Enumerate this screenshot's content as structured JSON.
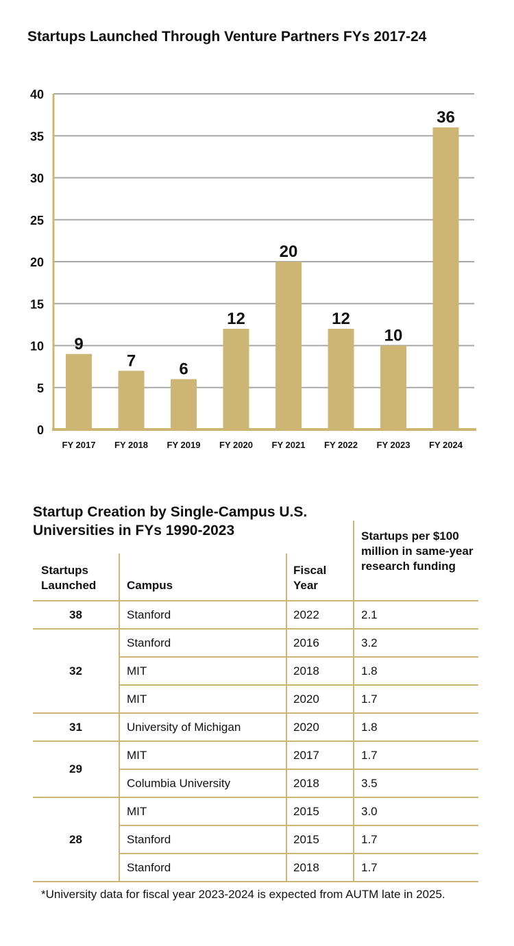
{
  "chart_data": {
    "type": "bar",
    "title": "Startups Launched Through Venture Partners FYs 2017-24",
    "categories": [
      "FY 2017",
      "FY 2018",
      "FY 2019",
      "FY 2020",
      "FY 2021",
      "FY 2022",
      "FY 2023",
      "FY 2024"
    ],
    "values": [
      9,
      7,
      6,
      12,
      20,
      12,
      10,
      36
    ],
    "data_labels": [
      "9",
      "7",
      "6",
      "12",
      "20",
      "12",
      "10",
      "36"
    ],
    "ylim": [
      0,
      40
    ],
    "yticks": [
      0,
      5,
      10,
      15,
      20,
      25,
      30,
      35,
      40
    ],
    "grid": true,
    "bar_color": "#cdb574",
    "xlabel": "",
    "ylabel": ""
  },
  "table": {
    "title": "Startup Creation by Single-Campus U.S. Universities in FYs 1990-2023",
    "headers": {
      "launched": "Startups Launched",
      "campus": "Campus",
      "fiscal_year": "Fiscal Year",
      "per_100m": "Startups per $100 million in same-year research funding"
    },
    "groups": [
      {
        "launched": "38",
        "rows": [
          {
            "campus": "Stanford",
            "year": "2022",
            "rate": "2.1"
          }
        ]
      },
      {
        "launched": "32",
        "rows": [
          {
            "campus": "Stanford",
            "year": "2016",
            "rate": "3.2"
          },
          {
            "campus": "MIT",
            "year": "2018",
            "rate": "1.8"
          },
          {
            "campus": "MIT",
            "year": "2020",
            "rate": "1.7"
          }
        ]
      },
      {
        "launched": "31",
        "rows": [
          {
            "campus": "University of Michigan",
            "year": "2020",
            "rate": "1.8"
          }
        ]
      },
      {
        "launched": "29",
        "rows": [
          {
            "campus": "MIT",
            "year": "2017",
            "rate": "1.7"
          },
          {
            "campus": "Columbia University",
            "year": "2018",
            "rate": "3.5"
          }
        ]
      },
      {
        "launched": "28",
        "rows": [
          {
            "campus": "MIT",
            "year": "2015",
            "rate": "3.0"
          },
          {
            "campus": "Stanford",
            "year": "2015",
            "rate": "1.7"
          },
          {
            "campus": "Stanford",
            "year": "2018",
            "rate": "1.7"
          }
        ]
      }
    ]
  },
  "footnote": "*University data for fiscal year 2023-2024 is expected from AUTM late in 2025."
}
